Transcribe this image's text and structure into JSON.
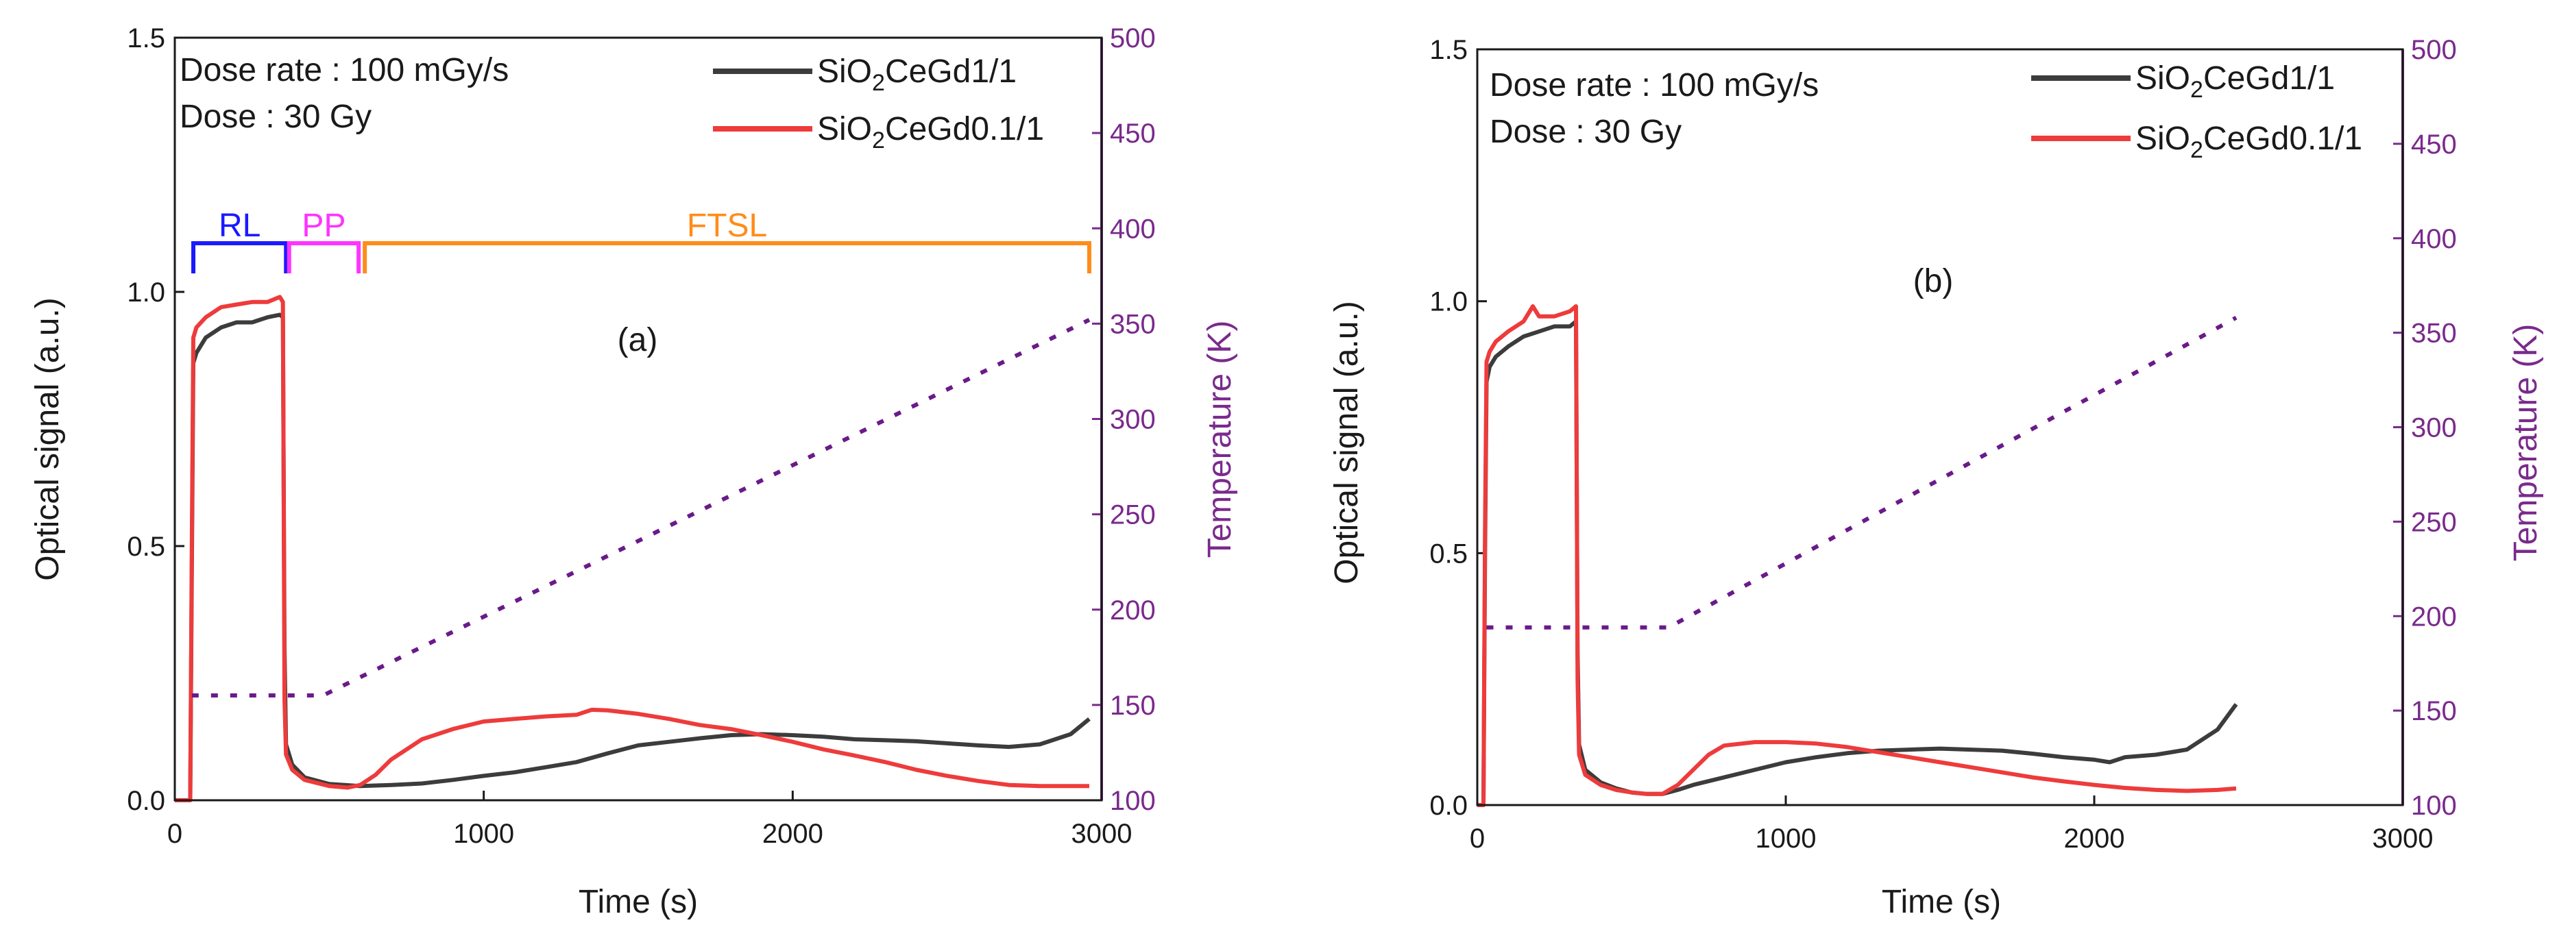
{
  "chart_data": [
    {
      "type": "line",
      "panel_label": "(a)",
      "xlabel": "Time (s)",
      "ylabel": "Optical signal (a.u.)",
      "y2label": "Temperature (K)",
      "xlim": [
        0,
        3000
      ],
      "ylim": [
        0,
        1.5
      ],
      "y2lim": [
        100,
        500
      ],
      "xticks": [
        "0",
        "1000",
        "2000",
        "3000"
      ],
      "yticks": [
        "0.0",
        "0.5",
        "1.0",
        "1.5"
      ],
      "y2ticks": [
        "100",
        "150",
        "200",
        "250",
        "300",
        "350",
        "400",
        "450",
        "500"
      ],
      "notes": [
        "Dose rate : 100 mGy/s",
        "Dose : 30 Gy"
      ],
      "regions": [
        {
          "label": "RL",
          "x_start": 60,
          "x_end": 360,
          "color": "#1a1aff"
        },
        {
          "label": "PP",
          "x_start": 370,
          "x_end": 595,
          "color": "#ff33ff"
        },
        {
          "label": "FTSL",
          "x_start": 615,
          "x_end": 2960,
          "color": "#ff8c1a"
        }
      ],
      "series": [
        {
          "name": "SiO2CeGd1/1",
          "legend_main": "SiO",
          "legend_sub": "2",
          "legend_rest": "CeGd1/1",
          "color": "#3c3c3c",
          "x": [
            0,
            50,
            55,
            60,
            70,
            100,
            150,
            200,
            250,
            300,
            340,
            350,
            355,
            360,
            380,
            420,
            500,
            600,
            700,
            800,
            900,
            1000,
            1100,
            1200,
            1300,
            1400,
            1500,
            1600,
            1700,
            1800,
            1900,
            2000,
            2100,
            2200,
            2300,
            2400,
            2500,
            2600,
            2700,
            2800,
            2900,
            2960
          ],
          "y": [
            0.0,
            0.0,
            0.45,
            0.86,
            0.88,
            0.91,
            0.93,
            0.94,
            0.94,
            0.95,
            0.955,
            0.95,
            0.3,
            0.11,
            0.07,
            0.045,
            0.032,
            0.028,
            0.03,
            0.033,
            0.04,
            0.048,
            0.055,
            0.065,
            0.075,
            0.092,
            0.108,
            0.115,
            0.122,
            0.128,
            0.13,
            0.128,
            0.125,
            0.12,
            0.118,
            0.116,
            0.112,
            0.108,
            0.105,
            0.11,
            0.13,
            0.16
          ]
        },
        {
          "name": "SiO2CeGd0.1/1",
          "legend_main": "SiO",
          "legend_sub": "2",
          "legend_rest": "CeGd0.1/1",
          "color": "#ee3b3b",
          "x": [
            0,
            50,
            55,
            60,
            70,
            100,
            150,
            200,
            250,
            300,
            340,
            350,
            355,
            360,
            380,
            420,
            500,
            560,
            600,
            650,
            700,
            800,
            900,
            1000,
            1100,
            1200,
            1300,
            1350,
            1400,
            1500,
            1600,
            1700,
            1800,
            1900,
            2000,
            2100,
            2200,
            2300,
            2400,
            2500,
            2600,
            2700,
            2800,
            2900,
            2960
          ],
          "y": [
            0.0,
            0.0,
            0.5,
            0.91,
            0.93,
            0.95,
            0.97,
            0.975,
            0.98,
            0.98,
            0.99,
            0.98,
            0.2,
            0.09,
            0.06,
            0.04,
            0.028,
            0.025,
            0.03,
            0.05,
            0.08,
            0.12,
            0.14,
            0.155,
            0.16,
            0.165,
            0.168,
            0.178,
            0.177,
            0.17,
            0.16,
            0.148,
            0.14,
            0.128,
            0.115,
            0.1,
            0.088,
            0.075,
            0.06,
            0.048,
            0.038,
            0.03,
            0.028,
            0.028,
            0.028
          ]
        },
        {
          "name": "Temperature",
          "color": "#6a1a8a",
          "dashed": true,
          "axis": "right",
          "x": [
            55,
            480,
            2960
          ],
          "y": [
            155,
            155,
            352
          ]
        }
      ]
    },
    {
      "type": "line",
      "panel_label": "(b)",
      "xlabel": "Time (s)",
      "ylabel": "Optical signal (a.u.)",
      "y2label": "Temperature (K)",
      "xlim": [
        0,
        3000
      ],
      "ylim": [
        0,
        1.5
      ],
      "y2lim": [
        100,
        500
      ],
      "xticks": [
        "0",
        "1000",
        "2000",
        "3000"
      ],
      "yticks": [
        "0.0",
        "0.5",
        "1.0",
        "1.5"
      ],
      "y2ticks": [
        "100",
        "150",
        "200",
        "250",
        "300",
        "350",
        "400",
        "450",
        "500"
      ],
      "notes": [
        "Dose rate : 100 mGy/s",
        "Dose : 30 Gy"
      ],
      "regions": [],
      "series": [
        {
          "name": "SiO2CeGd1/1",
          "legend_main": "SiO",
          "legend_sub": "2",
          "legend_rest": "CeGd1/1",
          "color": "#3c3c3c",
          "x": [
            0,
            20,
            25,
            30,
            40,
            60,
            100,
            150,
            200,
            250,
            300,
            320,
            325,
            330,
            350,
            400,
            450,
            500,
            550,
            600,
            650,
            700,
            800,
            900,
            1000,
            1100,
            1200,
            1300,
            1400,
            1500,
            1600,
            1700,
            1800,
            1900,
            2000,
            2050,
            2100,
            2200,
            2300,
            2400,
            2460
          ],
          "y": [
            0.0,
            0.0,
            0.5,
            0.84,
            0.87,
            0.89,
            0.91,
            0.93,
            0.94,
            0.95,
            0.95,
            0.96,
            0.3,
            0.12,
            0.07,
            0.045,
            0.033,
            0.025,
            0.022,
            0.022,
            0.03,
            0.04,
            0.055,
            0.07,
            0.085,
            0.095,
            0.103,
            0.108,
            0.11,
            0.112,
            0.11,
            0.108,
            0.102,
            0.095,
            0.09,
            0.085,
            0.095,
            0.1,
            0.11,
            0.15,
            0.2
          ]
        },
        {
          "name": "SiO2CeGd0.1/1",
          "legend_main": "SiO",
          "legend_sub": "2",
          "legend_rest": "CeGd0.1/1",
          "color": "#ee3b3b",
          "x": [
            0,
            20,
            25,
            30,
            40,
            60,
            100,
            150,
            180,
            200,
            250,
            300,
            320,
            325,
            330,
            350,
            400,
            450,
            500,
            550,
            600,
            650,
            700,
            750,
            800,
            900,
            1000,
            1100,
            1200,
            1300,
            1400,
            1500,
            1600,
            1700,
            1800,
            1900,
            2000,
            2100,
            2200,
            2300,
            2400,
            2460
          ],
          "y": [
            0.0,
            0.0,
            0.55,
            0.88,
            0.9,
            0.92,
            0.94,
            0.96,
            0.99,
            0.97,
            0.97,
            0.98,
            0.99,
            0.25,
            0.1,
            0.06,
            0.04,
            0.03,
            0.025,
            0.022,
            0.022,
            0.04,
            0.07,
            0.1,
            0.118,
            0.125,
            0.125,
            0.122,
            0.115,
            0.105,
            0.095,
            0.085,
            0.075,
            0.065,
            0.055,
            0.047,
            0.04,
            0.034,
            0.03,
            0.028,
            0.03,
            0.033
          ]
        },
        {
          "name": "Temperature",
          "color": "#6a1a8a",
          "dashed": true,
          "axis": "right",
          "x": [
            30,
            620,
            2460
          ],
          "y": [
            194,
            194,
            358
          ]
        }
      ]
    }
  ]
}
